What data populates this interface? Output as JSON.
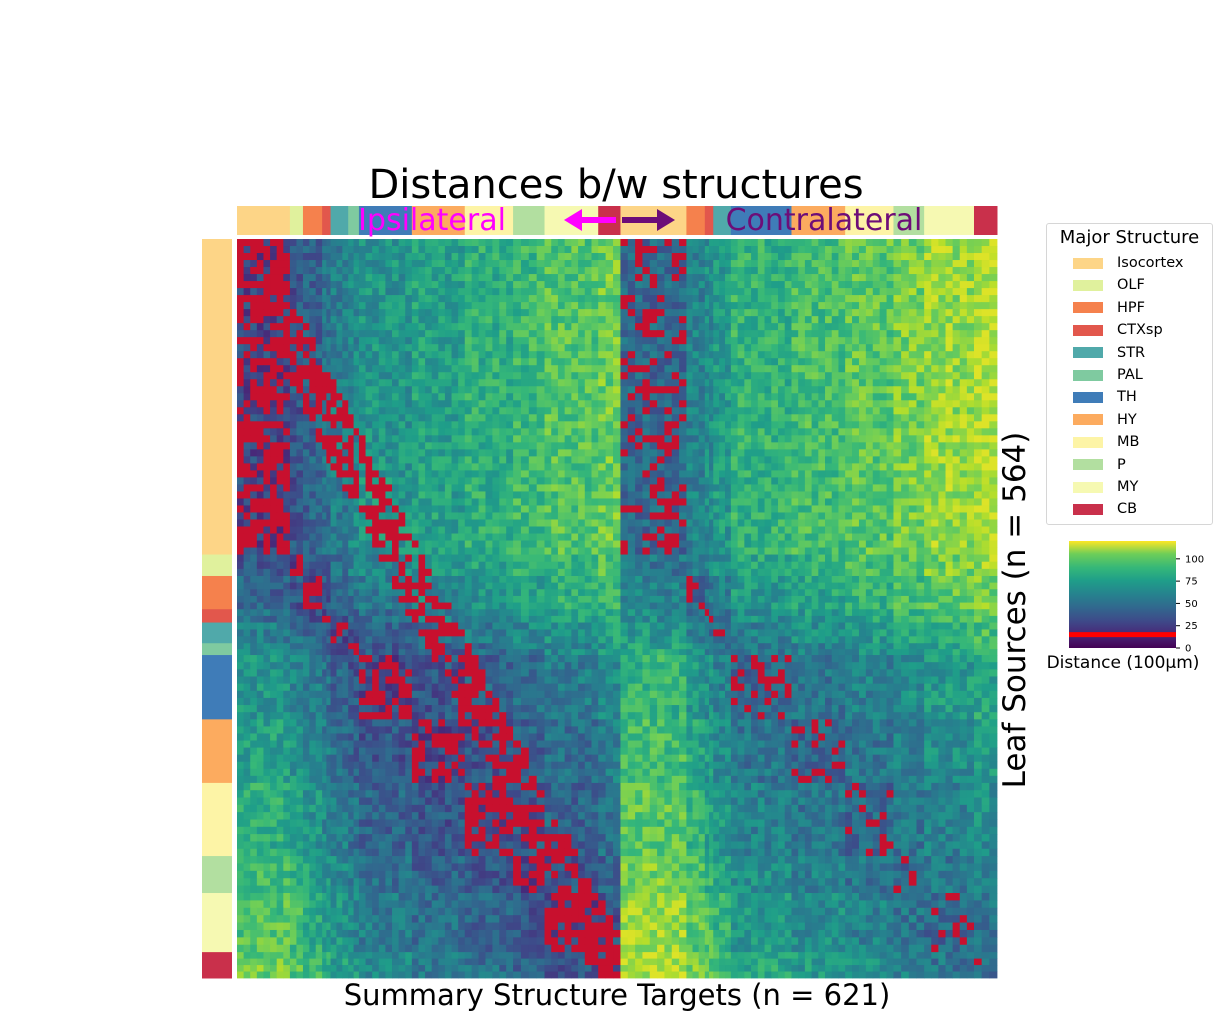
{
  "chart_data": {
    "type": "heatmap",
    "title": "Distances b/w structures",
    "xlabel": "Summary Structure Targets (n = 621)",
    "ylabel": "Leaf Sources (n = 564)",
    "n_targets": 621,
    "n_sources": 564,
    "annotations": {
      "ipsilateral": "Ipsilateral",
      "contralateral": "Contralateral"
    },
    "colormap": "viridis",
    "low_highlight_color": "#c8102e",
    "colorbar": {
      "label": "Distance (100μm)",
      "ticks": [
        0,
        25,
        50,
        75,
        100
      ],
      "range": [
        0,
        120
      ],
      "threshold_line": 15,
      "threshold_color": "#ff0000"
    },
    "legend": {
      "title": "Major Structure",
      "items": [
        {
          "label": "Isocortex",
          "color": "#fdd587"
        },
        {
          "label": "OLF",
          "color": "#e0f19d"
        },
        {
          "label": "HPF",
          "color": "#f5814d"
        },
        {
          "label": "CTXsp",
          "color": "#e2574c"
        },
        {
          "label": "STR",
          "color": "#50a9aa"
        },
        {
          "label": "PAL",
          "color": "#7fcaa0"
        },
        {
          "label": "TH",
          "color": "#3f7cb8"
        },
        {
          "label": "HY",
          "color": "#fcab5f"
        },
        {
          "label": "MB",
          "color": "#fdf4a6"
        },
        {
          "label": "P",
          "color": "#b2dfa0"
        },
        {
          "label": "MY",
          "color": "#f6f9b2"
        },
        {
          "label": "CB",
          "color": "#c9304b"
        }
      ]
    },
    "source_blocks": [
      {
        "structure": "Isocortex",
        "fraction": 0.427
      },
      {
        "structure": "OLF",
        "fraction": 0.029
      },
      {
        "structure": "HPF",
        "fraction": 0.045
      },
      {
        "structure": "CTXsp",
        "fraction": 0.018
      },
      {
        "structure": "STR",
        "fraction": 0.028
      },
      {
        "structure": "PAL",
        "fraction": 0.016
      },
      {
        "structure": "TH",
        "fraction": 0.087
      },
      {
        "structure": "HY",
        "fraction": 0.086
      },
      {
        "structure": "MB",
        "fraction": 0.099
      },
      {
        "structure": "P",
        "fraction": 0.05
      },
      {
        "structure": "MY",
        "fraction": 0.08
      },
      {
        "structure": "CB",
        "fraction": 0.035
      }
    ],
    "target_blocks": [
      {
        "structure": "Isocortex",
        "fraction": 0.069
      },
      {
        "structure": "OLF",
        "fraction": 0.017
      },
      {
        "structure": "HPF",
        "fraction": 0.025
      },
      {
        "structure": "CTXsp",
        "fraction": 0.011
      },
      {
        "structure": "STR",
        "fraction": 0.023
      },
      {
        "structure": "PAL",
        "fraction": 0.014
      },
      {
        "structure": "TH",
        "fraction": 0.069
      },
      {
        "structure": "HY",
        "fraction": 0.069
      },
      {
        "structure": "MB",
        "fraction": 0.063
      },
      {
        "structure": "P",
        "fraction": 0.041
      },
      {
        "structure": "MY",
        "fraction": 0.07
      },
      {
        "structure": "CB",
        "fraction": 0.029
      },
      {
        "structure": "Isocortex",
        "fraction": 0.086
      },
      {
        "structure": "HPF",
        "fraction": 0.024
      },
      {
        "structure": "CTXsp",
        "fraction": 0.011
      },
      {
        "structure": "STR",
        "fraction": 0.023
      },
      {
        "structure": "TH",
        "fraction": 0.079
      },
      {
        "structure": "HY",
        "fraction": 0.07
      },
      {
        "structure": "MB",
        "fraction": 0.063
      },
      {
        "structure": "P",
        "fraction": 0.04
      },
      {
        "structure": "MY",
        "fraction": 0.065
      },
      {
        "structure": "CB",
        "fraction": 0.03
      }
    ]
  }
}
